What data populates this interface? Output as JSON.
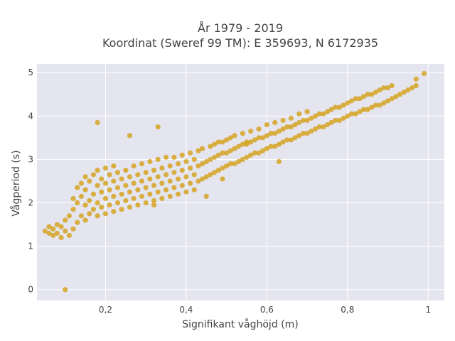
{
  "chart_data": {
    "type": "scatter",
    "title_line1": "År 1979 - 2019",
    "title_line2": "Koordinat (Sweref 99 TM): E 359693, N 6172935",
    "xlabel": "Signifikant våghöjd (m)",
    "ylabel": "Vågperiod (s)",
    "xlim": [
      0.03,
      1.04
    ],
    "ylim": [
      -0.25,
      5.2
    ],
    "x_ticks": [
      {
        "value": 0.2,
        "label": "0,2"
      },
      {
        "value": 0.4,
        "label": "0,4"
      },
      {
        "value": 0.6,
        "label": "0,6"
      },
      {
        "value": 0.8,
        "label": "0,8"
      },
      {
        "value": 1.0,
        "label": "1"
      }
    ],
    "y_ticks": [
      {
        "value": 0,
        "label": "0"
      },
      {
        "value": 1,
        "label": "1"
      },
      {
        "value": 2,
        "label": "2"
      },
      {
        "value": 3,
        "label": "3"
      },
      {
        "value": 4,
        "label": "4"
      },
      {
        "value": 5,
        "label": "5"
      }
    ],
    "grid": true,
    "legend": "none",
    "colors": {
      "marker": "#d4a017",
      "plot_background": "#e5e5f0",
      "grid": "#ffffff",
      "text": "#444444"
    },
    "series": [
      {
        "points": [
          [
            0.1,
            0.0
          ],
          [
            0.05,
            1.35
          ],
          [
            0.06,
            1.3
          ],
          [
            0.06,
            1.45
          ],
          [
            0.07,
            1.25
          ],
          [
            0.07,
            1.4
          ],
          [
            0.08,
            1.3
          ],
          [
            0.08,
            1.5
          ],
          [
            0.09,
            1.2
          ],
          [
            0.09,
            1.45
          ],
          [
            0.1,
            1.35
          ],
          [
            0.1,
            1.6
          ],
          [
            0.11,
            1.25
          ],
          [
            0.11,
            1.7
          ],
          [
            0.12,
            1.4
          ],
          [
            0.12,
            1.85
          ],
          [
            0.12,
            2.1
          ],
          [
            0.13,
            1.55
          ],
          [
            0.13,
            2.0
          ],
          [
            0.13,
            2.35
          ],
          [
            0.14,
            1.7
          ],
          [
            0.14,
            2.15
          ],
          [
            0.14,
            2.45
          ],
          [
            0.15,
            1.6
          ],
          [
            0.15,
            1.95
          ],
          [
            0.15,
            2.3
          ],
          [
            0.15,
            2.6
          ],
          [
            0.16,
            1.75
          ],
          [
            0.16,
            2.05
          ],
          [
            0.16,
            2.5
          ],
          [
            0.17,
            1.85
          ],
          [
            0.17,
            2.2
          ],
          [
            0.17,
            2.65
          ],
          [
            0.18,
            1.7
          ],
          [
            0.18,
            2.0
          ],
          [
            0.18,
            2.4
          ],
          [
            0.18,
            2.75
          ],
          [
            0.19,
            1.9
          ],
          [
            0.19,
            2.25
          ],
          [
            0.19,
            2.55
          ],
          [
            0.2,
            1.75
          ],
          [
            0.2,
            2.1
          ],
          [
            0.2,
            2.45
          ],
          [
            0.2,
            2.8
          ],
          [
            0.21,
            1.95
          ],
          [
            0.21,
            2.3
          ],
          [
            0.21,
            2.65
          ],
          [
            0.22,
            1.8
          ],
          [
            0.22,
            2.15
          ],
          [
            0.22,
            2.5
          ],
          [
            0.22,
            2.85
          ],
          [
            0.23,
            2.0
          ],
          [
            0.23,
            2.35
          ],
          [
            0.23,
            2.7
          ],
          [
            0.24,
            1.85
          ],
          [
            0.24,
            2.2
          ],
          [
            0.24,
            2.55
          ],
          [
            0.25,
            2.05
          ],
          [
            0.25,
            2.4
          ],
          [
            0.25,
            2.75
          ],
          [
            0.26,
            1.9
          ],
          [
            0.26,
            2.25
          ],
          [
            0.26,
            2.6
          ],
          [
            0.27,
            2.1
          ],
          [
            0.27,
            2.45
          ],
          [
            0.27,
            2.85
          ],
          [
            0.28,
            1.95
          ],
          [
            0.28,
            2.3
          ],
          [
            0.28,
            2.65
          ],
          [
            0.29,
            2.15
          ],
          [
            0.29,
            2.5
          ],
          [
            0.29,
            2.9
          ],
          [
            0.3,
            2.0
          ],
          [
            0.3,
            2.35
          ],
          [
            0.3,
            2.7
          ],
          [
            0.31,
            2.2
          ],
          [
            0.31,
            2.55
          ],
          [
            0.31,
            2.95
          ],
          [
            0.32,
            2.05
          ],
          [
            0.32,
            2.4
          ],
          [
            0.32,
            2.75
          ],
          [
            0.33,
            2.25
          ],
          [
            0.33,
            2.6
          ],
          [
            0.33,
            3.0
          ],
          [
            0.34,
            2.1
          ],
          [
            0.34,
            2.45
          ],
          [
            0.34,
            2.8
          ],
          [
            0.35,
            2.3
          ],
          [
            0.35,
            2.65
          ],
          [
            0.35,
            3.05
          ],
          [
            0.36,
            2.15
          ],
          [
            0.36,
            2.5
          ],
          [
            0.36,
            2.85
          ],
          [
            0.37,
            2.35
          ],
          [
            0.37,
            2.7
          ],
          [
            0.37,
            3.05
          ],
          [
            0.38,
            2.2
          ],
          [
            0.38,
            2.55
          ],
          [
            0.38,
            2.9
          ],
          [
            0.39,
            2.4
          ],
          [
            0.39,
            2.75
          ],
          [
            0.39,
            3.1
          ],
          [
            0.4,
            2.25
          ],
          [
            0.4,
            2.6
          ],
          [
            0.4,
            2.95
          ],
          [
            0.41,
            2.45
          ],
          [
            0.41,
            2.8
          ],
          [
            0.41,
            3.15
          ],
          [
            0.42,
            2.3
          ],
          [
            0.42,
            2.65
          ],
          [
            0.42,
            3.0
          ],
          [
            0.43,
            2.5
          ],
          [
            0.43,
            2.85
          ],
          [
            0.43,
            3.2
          ],
          [
            0.44,
            2.55
          ],
          [
            0.44,
            2.9
          ],
          [
            0.44,
            3.25
          ],
          [
            0.45,
            2.15
          ],
          [
            0.45,
            2.6
          ],
          [
            0.45,
            2.95
          ],
          [
            0.46,
            2.65
          ],
          [
            0.46,
            3.0
          ],
          [
            0.46,
            3.3
          ],
          [
            0.47,
            2.7
          ],
          [
            0.47,
            3.05
          ],
          [
            0.47,
            3.35
          ],
          [
            0.48,
            2.75
          ],
          [
            0.48,
            3.1
          ],
          [
            0.48,
            3.4
          ],
          [
            0.49,
            2.8
          ],
          [
            0.49,
            3.15
          ],
          [
            0.49,
            3.4
          ],
          [
            0.5,
            2.85
          ],
          [
            0.5,
            3.15
          ],
          [
            0.5,
            3.45
          ],
          [
            0.51,
            2.9
          ],
          [
            0.51,
            3.2
          ],
          [
            0.51,
            3.5
          ],
          [
            0.52,
            2.9
          ],
          [
            0.52,
            3.25
          ],
          [
            0.52,
            3.55
          ],
          [
            0.53,
            2.95
          ],
          [
            0.53,
            3.3
          ],
          [
            0.54,
            3.0
          ],
          [
            0.54,
            3.35
          ],
          [
            0.54,
            3.6
          ],
          [
            0.55,
            3.05
          ],
          [
            0.55,
            3.35
          ],
          [
            0.56,
            3.1
          ],
          [
            0.56,
            3.4
          ],
          [
            0.56,
            3.65
          ],
          [
            0.57,
            3.15
          ],
          [
            0.57,
            3.45
          ],
          [
            0.58,
            3.15
          ],
          [
            0.58,
            3.5
          ],
          [
            0.58,
            3.7
          ],
          [
            0.59,
            3.2
          ],
          [
            0.59,
            3.5
          ],
          [
            0.6,
            3.25
          ],
          [
            0.6,
            3.55
          ],
          [
            0.6,
            3.8
          ],
          [
            0.61,
            3.3
          ],
          [
            0.61,
            3.6
          ],
          [
            0.62,
            3.3
          ],
          [
            0.62,
            3.6
          ],
          [
            0.62,
            3.85
          ],
          [
            0.63,
            3.35
          ],
          [
            0.63,
            3.65
          ],
          [
            0.64,
            3.4
          ],
          [
            0.64,
            3.7
          ],
          [
            0.64,
            3.9
          ],
          [
            0.65,
            3.45
          ],
          [
            0.65,
            3.75
          ],
          [
            0.66,
            3.45
          ],
          [
            0.66,
            3.75
          ],
          [
            0.66,
            3.95
          ],
          [
            0.67,
            3.5
          ],
          [
            0.67,
            3.8
          ],
          [
            0.68,
            3.55
          ],
          [
            0.68,
            3.85
          ],
          [
            0.68,
            4.05
          ],
          [
            0.69,
            3.6
          ],
          [
            0.69,
            3.9
          ],
          [
            0.7,
            3.6
          ],
          [
            0.7,
            3.9
          ],
          [
            0.7,
            4.1
          ],
          [
            0.71,
            3.65
          ],
          [
            0.71,
            3.95
          ],
          [
            0.72,
            3.7
          ],
          [
            0.72,
            4.0
          ],
          [
            0.73,
            3.75
          ],
          [
            0.73,
            4.05
          ],
          [
            0.74,
            3.75
          ],
          [
            0.74,
            4.05
          ],
          [
            0.75,
            3.8
          ],
          [
            0.75,
            4.1
          ],
          [
            0.76,
            3.85
          ],
          [
            0.76,
            4.15
          ],
          [
            0.77,
            3.9
          ],
          [
            0.77,
            4.2
          ],
          [
            0.78,
            3.9
          ],
          [
            0.78,
            4.2
          ],
          [
            0.79,
            3.95
          ],
          [
            0.79,
            4.25
          ],
          [
            0.8,
            4.0
          ],
          [
            0.8,
            4.3
          ],
          [
            0.81,
            4.05
          ],
          [
            0.81,
            4.35
          ],
          [
            0.82,
            4.05
          ],
          [
            0.82,
            4.4
          ],
          [
            0.83,
            4.1
          ],
          [
            0.83,
            4.4
          ],
          [
            0.84,
            4.15
          ],
          [
            0.84,
            4.45
          ],
          [
            0.85,
            4.15
          ],
          [
            0.85,
            4.5
          ],
          [
            0.86,
            4.2
          ],
          [
            0.86,
            4.5
          ],
          [
            0.87,
            4.25
          ],
          [
            0.87,
            4.55
          ],
          [
            0.88,
            4.25
          ],
          [
            0.88,
            4.6
          ],
          [
            0.89,
            4.3
          ],
          [
            0.89,
            4.65
          ],
          [
            0.9,
            4.35
          ],
          [
            0.9,
            4.65
          ],
          [
            0.91,
            4.4
          ],
          [
            0.91,
            4.7
          ],
          [
            0.92,
            4.45
          ],
          [
            0.93,
            4.5
          ],
          [
            0.94,
            4.55
          ],
          [
            0.95,
            4.6
          ],
          [
            0.96,
            4.65
          ],
          [
            0.97,
            4.7
          ],
          [
            0.97,
            4.85
          ],
          [
            0.99,
            4.98
          ],
          [
            0.18,
            3.85
          ],
          [
            0.26,
            3.55
          ],
          [
            0.33,
            3.75
          ],
          [
            0.55,
            3.4
          ],
          [
            0.63,
            2.95
          ],
          [
            0.49,
            2.55
          ],
          [
            0.32,
            1.95
          ]
        ]
      }
    ]
  }
}
